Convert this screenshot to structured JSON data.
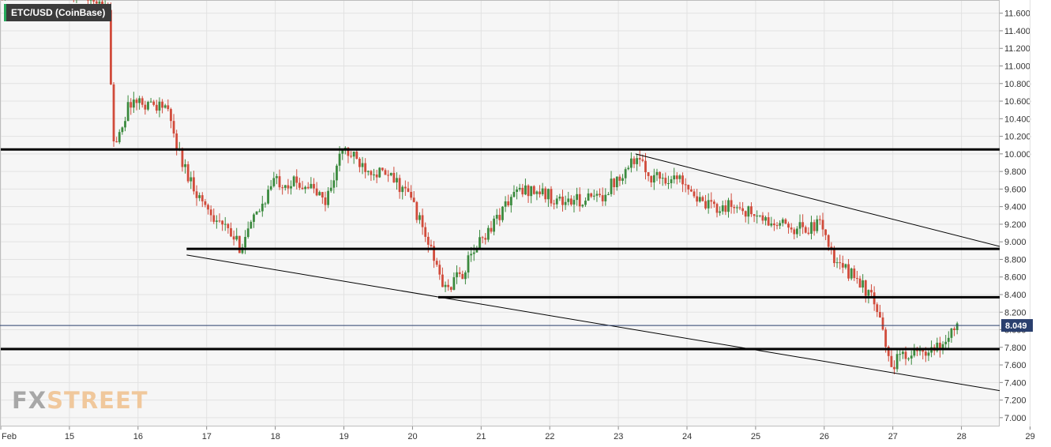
{
  "title": "ETC/USD (CoinBase)",
  "logo": {
    "fx": "FX",
    "street": "STREET"
  },
  "colors": {
    "up": "#3b8a3e",
    "down": "#d14b3b",
    "level_line": "#000000",
    "trend_line": "#000000",
    "price_line": "#2a3f6e",
    "price_tag": "#2a3f6e",
    "grid": "#e2e2e2",
    "plot_bg": "#f6f6f6"
  },
  "chart_data": {
    "type": "candlestick",
    "grid": true,
    "ylim": [
      6.9,
      11.75
    ],
    "y_ticks": [
      "7.000",
      "7.200",
      "7.400",
      "7.600",
      "7.800",
      "8.000",
      "8.200",
      "8.400",
      "8.600",
      "8.800",
      "9.000",
      "9.200",
      "9.400",
      "9.600",
      "9.800",
      "10.000",
      "10.200",
      "10.400",
      "10.600",
      "10.800",
      "11.000",
      "11.200",
      "11.400",
      "11.600"
    ],
    "x_ticks": [
      "Feb",
      "15",
      "16",
      "17",
      "18",
      "19",
      "20",
      "21",
      "22",
      "23",
      "24",
      "25",
      "26",
      "27",
      "28",
      "29"
    ],
    "last_price": "8.049",
    "horizontal_levels": [
      {
        "price": 10.05,
        "from": "Feb 14 00:00",
        "to": "Feb 29 00:00"
      },
      {
        "price": 8.92,
        "from": "Feb 16 17:00",
        "to": "Feb 29 00:00"
      },
      {
        "price": 8.37,
        "from": "Feb 20 09:00",
        "to": "Feb 29 00:00"
      },
      {
        "price": 7.78,
        "from": "Feb 14 00:00",
        "to": "Feb 29 00:00"
      }
    ],
    "trend_lines": [
      {
        "from": {
          "date": "Feb 16 17:00",
          "price": 8.85
        },
        "to": {
          "date": "Feb 29 00:00",
          "price": 7.25
        }
      },
      {
        "from": {
          "date": "Feb 23 06:00",
          "price": 10.0
        },
        "to": {
          "date": "Feb 29 00:00",
          "price": 8.86
        }
      }
    ],
    "anchors": [
      {
        "t": "Feb 14 00:00",
        "p": 11.9
      },
      {
        "t": "Feb 15 06:00",
        "p": 11.85
      },
      {
        "t": "Feb 15 14:00",
        "p": 11.6
      },
      {
        "t": "Feb 15 16:00",
        "p": 10.1
      },
      {
        "t": "Feb 15 22:00",
        "p": 10.6
      },
      {
        "t": "Feb 16 10:00",
        "p": 10.55
      },
      {
        "t": "Feb 16 16:00",
        "p": 9.9
      },
      {
        "t": "Feb 16 22:00",
        "p": 9.5
      },
      {
        "t": "Feb 17 12:00",
        "p": 8.95
      },
      {
        "t": "Feb 17 18:00",
        "p": 9.3
      },
      {
        "t": "Feb 18 00:00",
        "p": 9.7
      },
      {
        "t": "Feb 18 12:00",
        "p": 9.65
      },
      {
        "t": "Feb 18 18:00",
        "p": 9.45
      },
      {
        "t": "Feb 19 00:00",
        "p": 10.05
      },
      {
        "t": "Feb 19 06:00",
        "p": 9.9
      },
      {
        "t": "Feb 19 18:00",
        "p": 9.7
      },
      {
        "t": "Feb 20 00:00",
        "p": 9.5
      },
      {
        "t": "Feb 20 12:00",
        "p": 8.45
      },
      {
        "t": "Feb 20 18:00",
        "p": 8.65
      },
      {
        "t": "Feb 21 00:00",
        "p": 9.0
      },
      {
        "t": "Feb 21 12:00",
        "p": 9.55
      },
      {
        "t": "Feb 21 18:00",
        "p": 9.6
      },
      {
        "t": "Feb 22 06:00",
        "p": 9.45
      },
      {
        "t": "Feb 22 18:00",
        "p": 9.5
      },
      {
        "t": "Feb 23 06:00",
        "p": 9.95
      },
      {
        "t": "Feb 23 12:00",
        "p": 9.75
      },
      {
        "t": "Feb 24 00:00",
        "p": 9.7
      },
      {
        "t": "Feb 24 06:00",
        "p": 9.4
      },
      {
        "t": "Feb 24 18:00",
        "p": 9.4
      },
      {
        "t": "Feb 25 06:00",
        "p": 9.2
      },
      {
        "t": "Feb 25 18:00",
        "p": 9.15
      },
      {
        "t": "Feb 26 00:00",
        "p": 9.2
      },
      {
        "t": "Feb 26 04:00",
        "p": 8.75
      },
      {
        "t": "Feb 26 12:00",
        "p": 8.6
      },
      {
        "t": "Feb 26 18:00",
        "p": 8.3
      },
      {
        "t": "Feb 27 00:00",
        "p": 7.6
      },
      {
        "t": "Feb 27 06:00",
        "p": 7.75
      },
      {
        "t": "Feb 27 12:00",
        "p": 7.7
      },
      {
        "t": "Feb 27 18:00",
        "p": 7.82
      },
      {
        "t": "Feb 27 22:00",
        "p": 8.05
      }
    ]
  }
}
